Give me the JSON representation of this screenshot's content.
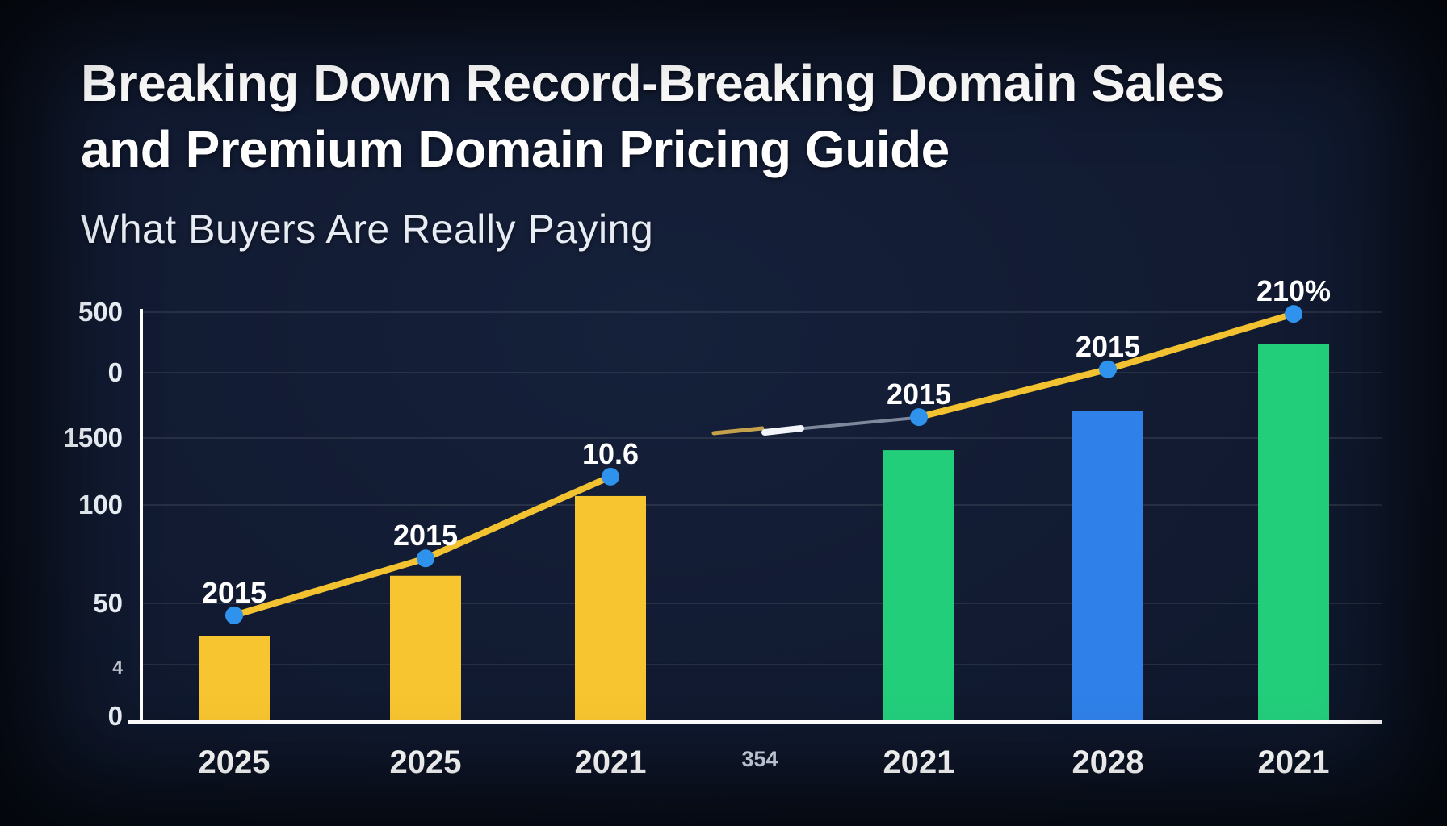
{
  "header": {
    "title_line1": "Breaking Down Record-Breaking Domain Sales",
    "title_line2": "and Premium Domain Pricing Guide",
    "subtitle": "What Buyers Are Really Paying"
  },
  "colors": {
    "background": "#101a2e",
    "bar_yellow": "#F7C52F",
    "bar_green": "#23CE7B",
    "bar_blue": "#2F80E8",
    "line_yellow": "#F2C230",
    "line_break_grey": "#8A94A8",
    "marker_blue": "#2F93EE",
    "axis_white": "#FFFFFF",
    "text_white": "#FFFFFF"
  },
  "chart_data": {
    "type": "bar",
    "subtype": "combo-bar-line",
    "title": "Breaking Down Record-Breaking Domain Sales and Premium Domain Pricing Guide",
    "subtitle": "What Buyers Are Really Paying",
    "grid": true,
    "legend": false,
    "xlabel": "",
    "ylabel": "",
    "y_axis_tick_labels_top_to_bottom": [
      "500",
      "0",
      "1500",
      "100",
      "50",
      "4",
      "0"
    ],
    "categories": [
      "2025",
      "2025",
      "2021",
      "354",
      "2021",
      "2028",
      "2021"
    ],
    "series": [
      {
        "name": "bars",
        "type": "bar",
        "note": "height as percent of plot height; category 354 has no bar",
        "values_pct": [
          20.9,
          35.4,
          54.7,
          null,
          65.8,
          75.2,
          91.6
        ],
        "bar_colors": [
          "#F7C52F",
          "#F7C52F",
          "#F7C52F",
          null,
          "#23CE7B",
          "#2F80E8",
          "#23CE7B"
        ]
      },
      {
        "name": "trend-line",
        "type": "line",
        "color": "#F2C230",
        "marker_color": "#2F93EE",
        "note": "line skips category slot 4 (354); broken by a short dash and a grey connector between slots 3 and 5",
        "points": [
          {
            "slot": 0,
            "label": "2015",
            "value_pct": 25.8
          },
          {
            "slot": 1,
            "label": "2015",
            "value_pct": 39.6
          },
          {
            "slot": 2,
            "label": "10.6",
            "value_pct": 59.4
          },
          {
            "slot": 4,
            "label": "2015",
            "value_pct": 73.8
          },
          {
            "slot": 5,
            "label": "2015",
            "value_pct": 85.4
          },
          {
            "slot": 6,
            "label": "210%",
            "value_pct": 98.8
          }
        ],
        "segments": [
          [
            0,
            1,
            2
          ],
          [
            3,
            4,
            5
          ]
        ]
      }
    ]
  }
}
